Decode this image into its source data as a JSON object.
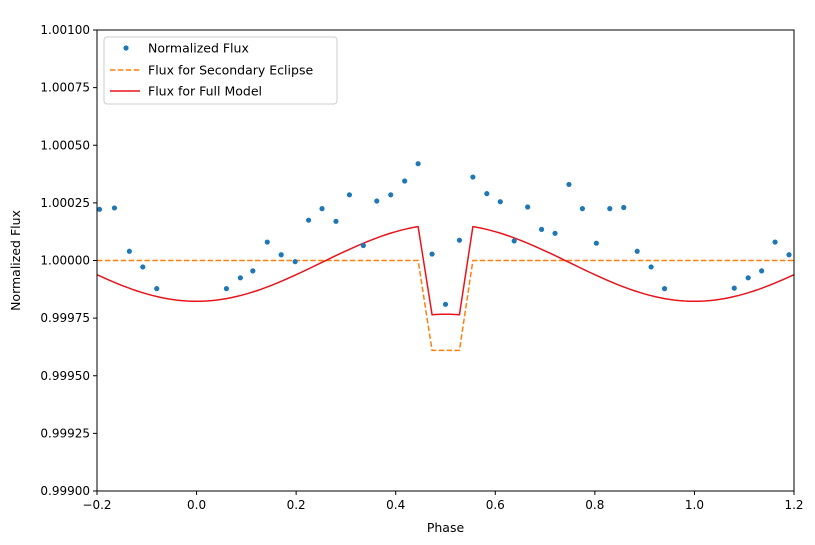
{
  "chart_data": {
    "type": "line",
    "xlabel": "Phase",
    "ylabel": "Normalized Flux",
    "xlim": [
      -0.2,
      1.2
    ],
    "ylim": [
      0.999,
      1.001
    ],
    "xticks": [
      -0.2,
      0.0,
      0.2,
      0.4,
      0.6,
      0.8,
      1.0,
      1.2
    ],
    "yticks": [
      0.999,
      0.99925,
      0.9995,
      0.99975,
      1.0,
      1.00025,
      1.0005,
      1.00075,
      1.001
    ],
    "xtick_labels": [
      "−0.2",
      "0.0",
      "0.2",
      "0.4",
      "0.6",
      "0.8",
      "1.0",
      "1.2"
    ],
    "ytick_labels": [
      "0.99900",
      "0.99925",
      "0.99950",
      "0.99975",
      "1.00000",
      "1.00025",
      "1.00050",
      "1.00075",
      "1.00100"
    ],
    "grid": false,
    "legend_position": "top-left",
    "series": [
      {
        "name": "Normalized Flux",
        "style": "markers",
        "color": "#1f77b4",
        "points": [
          [
            -0.195,
            1.000222
          ],
          [
            -0.165,
            1.000228
          ],
          [
            -0.135,
            1.00004
          ],
          [
            -0.108,
            0.999972
          ],
          [
            -0.08,
            0.999878
          ],
          [
            0.06,
            0.999878
          ],
          [
            0.088,
            0.999925
          ],
          [
            0.113,
            0.999955
          ],
          [
            0.142,
            1.00008
          ],
          [
            0.17,
            1.000025
          ],
          [
            0.198,
            0.999995
          ],
          [
            0.225,
            1.000175
          ],
          [
            0.252,
            1.000225
          ],
          [
            0.28,
            1.00017
          ],
          [
            0.307,
            1.000285
          ],
          [
            0.335,
            1.000065
          ],
          [
            0.362,
            1.000258
          ],
          [
            0.39,
            1.000285
          ],
          [
            0.418,
            1.000345
          ],
          [
            0.445,
            1.00042
          ],
          [
            0.473,
            1.000028
          ],
          [
            0.5,
            0.99981
          ],
          [
            0.528,
            1.000088
          ],
          [
            0.555,
            1.000362
          ],
          [
            0.583,
            1.00029
          ],
          [
            0.61,
            1.000255
          ],
          [
            0.638,
            1.000085
          ],
          [
            0.665,
            1.000232
          ],
          [
            0.693,
            1.000135
          ],
          [
            0.72,
            1.000118
          ],
          [
            0.748,
            1.00033
          ],
          [
            0.775,
            1.000225
          ],
          [
            0.803,
            1.000075
          ],
          [
            0.83,
            1.000225
          ],
          [
            0.858,
            1.00023
          ],
          [
            0.885,
            1.00004
          ],
          [
            0.913,
            0.999972
          ],
          [
            0.94,
            0.999878
          ],
          [
            1.08,
            0.99988
          ],
          [
            1.108,
            0.999925
          ],
          [
            1.135,
            0.999955
          ],
          [
            1.162,
            1.00008
          ],
          [
            1.19,
            1.000025
          ]
        ]
      },
      {
        "name": "Flux for Secondary Eclipse",
        "style": "dashed",
        "color": "#ff7f0e",
        "points": [
          [
            -0.2,
            1.0
          ],
          [
            0.445,
            1.0
          ],
          [
            0.473,
            0.99961
          ],
          [
            0.528,
            0.99961
          ],
          [
            0.555,
            1.0
          ],
          [
            1.2,
            1.0
          ]
        ]
      },
      {
        "name": "Flux for Full Model",
        "style": "solid",
        "color": "#e8141b",
        "model": {
          "baseline": 0.99999,
          "amplitude": 0.000167,
          "eclipse_start": 0.445,
          "eclipse_full_start": 0.473,
          "eclipse_full_end": 0.528,
          "eclipse_end": 0.555,
          "eclipse_depth": 0.00039
        }
      }
    ]
  }
}
